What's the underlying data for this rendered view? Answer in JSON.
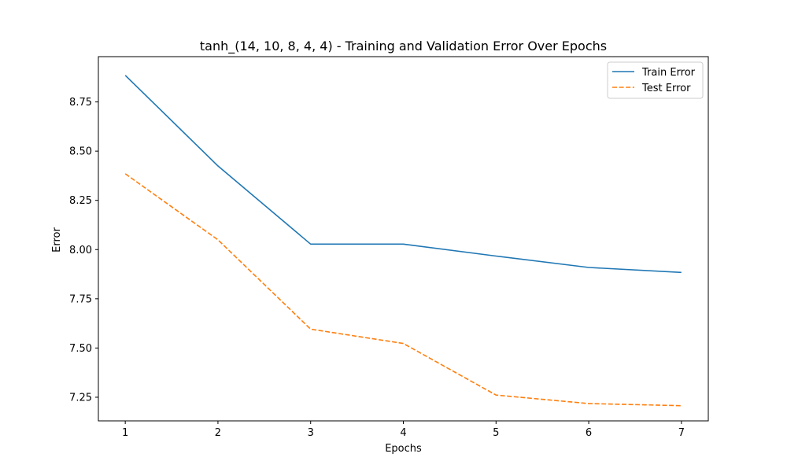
{
  "chart_data": {
    "type": "line",
    "title": "tanh_(14, 10, 8, 4, 4) - Training and Validation Error Over Epochs",
    "xlabel": "Epochs",
    "ylabel": "Error",
    "x": [
      1,
      2,
      3,
      4,
      5,
      6,
      7
    ],
    "xlim": [
      0.71,
      7.29
    ],
    "ylim": [
      7.13,
      8.98
    ],
    "xticks": [
      1,
      2,
      3,
      4,
      5,
      6,
      7
    ],
    "yticks": [
      7.25,
      7.5,
      7.75,
      8.0,
      8.25,
      8.5,
      8.75
    ],
    "ytick_labels": [
      "7.25",
      "7.50",
      "7.75",
      "8.00",
      "8.25",
      "8.50",
      "8.75"
    ],
    "grid": false,
    "legend_position": "top-right",
    "series": [
      {
        "name": "Train Error",
        "values": [
          8.885,
          8.425,
          8.028,
          8.028,
          7.967,
          7.909,
          7.884
        ],
        "color": "#1f77b4",
        "style": "solid"
      },
      {
        "name": "Test Error",
        "values": [
          8.385,
          8.05,
          7.596,
          7.523,
          7.261,
          7.218,
          7.207
        ],
        "color": "#ff7f0e",
        "style": "dashed"
      }
    ]
  }
}
